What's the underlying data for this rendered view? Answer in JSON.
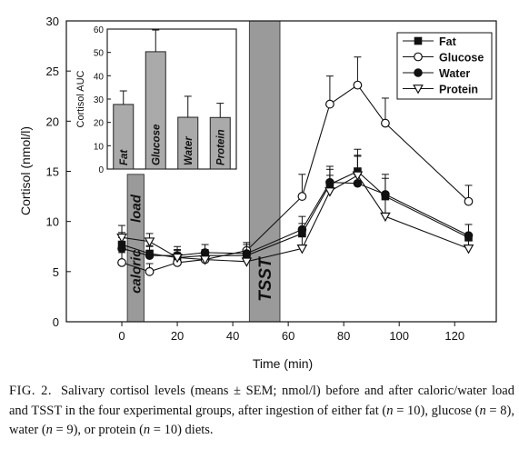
{
  "chart_data": [
    {
      "type": "line",
      "xlabel": "Time (min)",
      "ylabel": "Cortisol (nmol/l)",
      "xlim": [
        -20,
        135
      ],
      "ylim": [
        0,
        30
      ],
      "x_ticks": [
        0,
        20,
        40,
        60,
        80,
        100,
        120
      ],
      "y_ticks": [
        0,
        5,
        10,
        15,
        20,
        25,
        30
      ],
      "legend": "top-right",
      "error_bars": "SEM",
      "shaded_bands": [
        {
          "label": "caloric load",
          "x": [
            2,
            8
          ],
          "y": [
            0,
            14.7
          ]
        },
        {
          "label": "TSST",
          "x": [
            46,
            57
          ],
          "y": [
            0,
            30
          ]
        }
      ],
      "series": [
        {
          "name": "Fat",
          "marker": "filled-square",
          "x": [
            0,
            10,
            20,
            30,
            45,
            65,
            75,
            85,
            95,
            125
          ],
          "values": [
            7.7,
            6.8,
            6.4,
            6.6,
            6.6,
            8.8,
            13.7,
            15.0,
            12.5,
            8.4
          ],
          "errors": [
            1.2,
            0.8,
            0.7,
            0.6,
            0.6,
            1.0,
            1.5,
            2.2,
            1.8,
            1.3
          ]
        },
        {
          "name": "Glucose",
          "marker": "open-circle",
          "x": [
            0,
            10,
            20,
            30,
            45,
            65,
            75,
            85,
            95,
            125
          ],
          "values": [
            5.9,
            5.0,
            5.9,
            6.2,
            7.1,
            12.5,
            21.7,
            23.6,
            19.8,
            12.0
          ],
          "errors": [
            1.0,
            0.8,
            1.0,
            0.9,
            0.8,
            2.2,
            2.8,
            2.8,
            2.5,
            1.6
          ]
        },
        {
          "name": "Water",
          "marker": "filled-circle",
          "x": [
            0,
            10,
            20,
            30,
            45,
            65,
            75,
            85,
            95,
            125
          ],
          "values": [
            7.3,
            6.6,
            6.6,
            6.9,
            6.8,
            9.2,
            13.9,
            13.8,
            12.7,
            8.6
          ],
          "errors": [
            1.1,
            0.9,
            0.9,
            0.8,
            0.9,
            1.3,
            1.6,
            2.8,
            2.0,
            1.1
          ]
        },
        {
          "name": "Protein",
          "marker": "open-triangle-down",
          "x": [
            0,
            10,
            20,
            30,
            45,
            65,
            75,
            85,
            95,
            125
          ],
          "values": [
            8.4,
            8.0,
            6.4,
            6.2,
            6.0,
            7.3,
            13.0,
            14.6,
            10.5,
            7.3
          ],
          "errors": [
            1.2,
            0.8,
            0.8,
            0.7,
            0.6,
            1.3,
            1.6,
            1.9,
            2.1,
            1.4
          ]
        }
      ]
    },
    {
      "type": "bar",
      "inset": true,
      "ylabel": "Cortisol AUC",
      "ylim": [
        0,
        60
      ],
      "y_ticks": [
        0,
        10,
        20,
        30,
        40,
        50,
        60
      ],
      "categories": [
        "Fat",
        "Glucose",
        "Water",
        "Protein"
      ],
      "values": [
        27.7,
        50.3,
        22.2,
        22.1
      ],
      "errors": [
        5.8,
        9.3,
        9.0,
        6.1
      ],
      "bar_color": "#aaaaaa"
    }
  ],
  "caption": {
    "label": "FIG. 2.",
    "parts": [
      "Salivary cortisol levels (means ± SEM; nmol/l) before and after caloric/water load and TSST in the four experimental groups, after ingestion of either fat (",
      "n",
      " = 10), glucose (",
      "n",
      " = 8), water (",
      "n",
      " = 9), or protein (",
      "n",
      " = 10) diets."
    ]
  }
}
